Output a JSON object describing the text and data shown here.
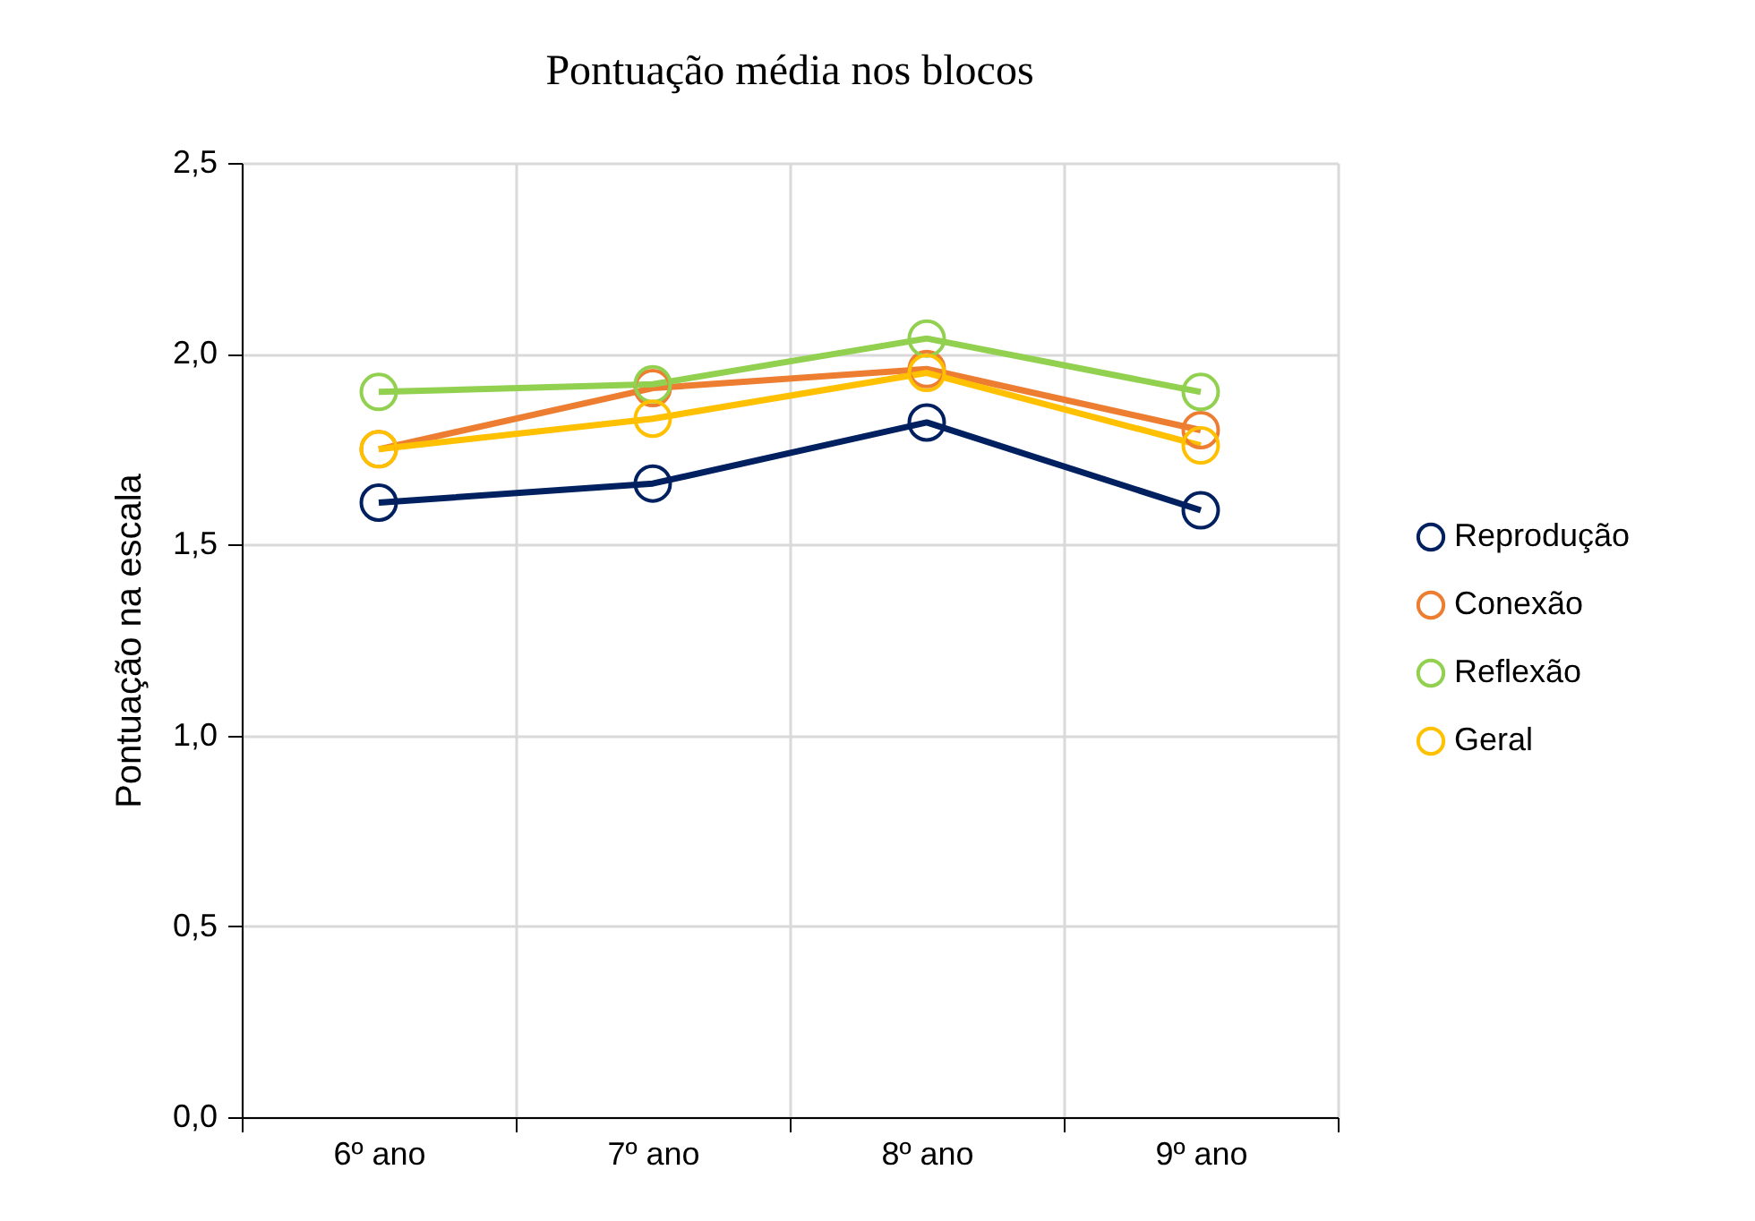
{
  "chart_data": {
    "type": "line",
    "title": "Pontuação média nos blocos",
    "ylabel": "Pontuação na escala",
    "categories": [
      "6º ano",
      "7º ano",
      "8º ano",
      "9º ano"
    ],
    "series": [
      {
        "name": "Reprodução",
        "color": "#002060",
        "values": [
          1.61,
          1.66,
          1.82,
          1.59
        ]
      },
      {
        "name": "Conexão",
        "color": "#ed7d31",
        "values": [
          1.75,
          1.91,
          1.96,
          1.8
        ]
      },
      {
        "name": "Reflexão",
        "color": "#92d050",
        "values": [
          1.9,
          1.92,
          2.04,
          1.9
        ]
      },
      {
        "name": "Geral",
        "color": "#ffc000",
        "values": [
          1.75,
          1.83,
          1.95,
          1.76
        ]
      }
    ],
    "ylim": [
      0,
      2.5
    ],
    "yticks": [
      {
        "value": 0,
        "label": "0,0"
      },
      {
        "value": 0.5,
        "label": "0,5"
      },
      {
        "value": 1,
        "label": "1,0"
      },
      {
        "value": 1.5,
        "label": "1,5"
      },
      {
        "value": 2,
        "label": "2,0"
      },
      {
        "value": 2.5,
        "label": "2,5"
      }
    ],
    "grid": true,
    "legend": "right",
    "marker": "circle"
  }
}
